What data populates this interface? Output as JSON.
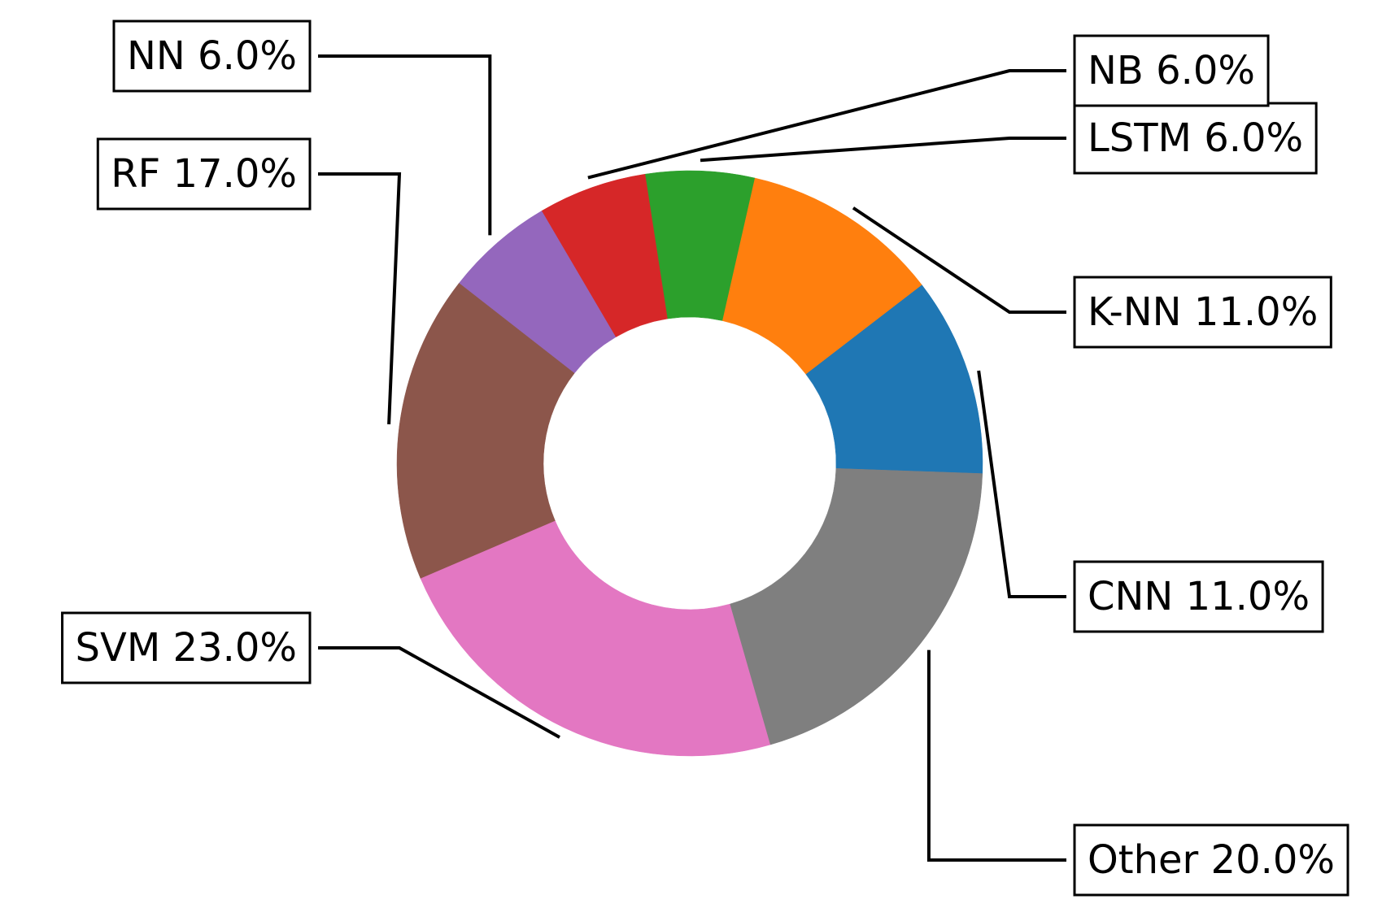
{
  "chart_data": {
    "type": "pie",
    "hole": true,
    "slices": [
      {
        "label": "CNN",
        "value": 11.0,
        "display": "CNN 11.0%",
        "color": "#1f77b4"
      },
      {
        "label": "K-NN",
        "value": 11.0,
        "display": "K-NN 11.0%",
        "color": "#ff7f0e"
      },
      {
        "label": "LSTM",
        "value": 6.0,
        "display": "LSTM 6.0%",
        "color": "#2ca02c"
      },
      {
        "label": "NB",
        "value": 6.0,
        "display": "NB 6.0%",
        "color": "#d62728"
      },
      {
        "label": "NN",
        "value": 6.0,
        "display": "NN 6.0%",
        "color": "#9467bd"
      },
      {
        "label": "RF",
        "value": 17.0,
        "display": "RF 17.0%",
        "color": "#8c564b"
      },
      {
        "label": "SVM",
        "value": 23.0,
        "display": "SVM 23.0%",
        "color": "#e377c2"
      },
      {
        "label": "Other",
        "value": 20.0,
        "display": "Other 20.0%",
        "color": "#7f7f7f"
      }
    ]
  }
}
